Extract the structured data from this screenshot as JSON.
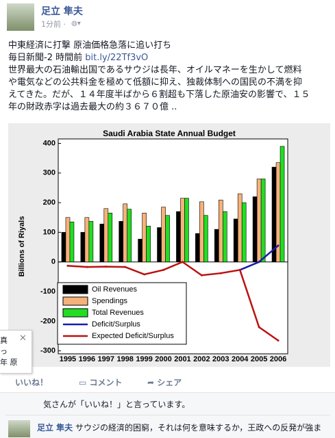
{
  "post": {
    "author": "足立 隼夫",
    "time": "1分前 ·",
    "headline": "中東経済に打撃 原油価格急落に追い打ち",
    "source": "毎日新聞-2 時間前",
    "link": "bit.ly/22Tf3vO",
    "body": [
      "世界最大の石油輸出国であるサウジは長年、オイルマネーを生かして燃料",
      "や電気などの公共料金を極めて低額に抑え、独裁体制への国民の不満を抑",
      "えてきた。だが、１４年度半ばから６割超も下落した原油安の影響で、１５",
      "年の財政赤字は過去最大の約３６７０億 .."
    ]
  },
  "popup": {
    "lines": [
      "真",
      "っ",
      "年 原"
    ]
  },
  "actions": {
    "like": "いいね！",
    "comment": "コメント",
    "share": "シェア"
  },
  "likes": "気さんが「いいね！」と言っています。",
  "comment": {
    "author": "足立 隼夫",
    "text": "サウジの経済的困窮，それは何を意味するか，王政への反発が強ま"
  },
  "chart_data": {
    "type": "bar",
    "title": "Saudi Arabia State Annual Budget",
    "y_label": "Billions of Riyals",
    "categories": [
      "1995",
      "1996",
      "1997",
      "1998",
      "1999",
      "2000",
      "2001",
      "2002",
      "2003",
      "2004",
      "2005",
      "2006"
    ],
    "ylim": [
      -310,
      415
    ],
    "yticks": [
      -300,
      -200,
      -100,
      0,
      100,
      200,
      300,
      400
    ],
    "series": [
      {
        "name": "Oil Revenues",
        "type": "bar",
        "color": "#000000",
        "values": [
          100,
          100,
          128,
          137,
          77,
          116,
          170,
          96,
          110,
          145,
          220,
          320
        ]
      },
      {
        "name": "Spendings",
        "type": "bar",
        "color": "#f5b27a",
        "values": [
          150,
          150,
          180,
          196,
          165,
          185,
          215,
          203,
          209,
          230,
          280,
          335
        ]
      },
      {
        "name": "Total Revenues",
        "type": "bar",
        "color": "#22dd22",
        "values": [
          135,
          137,
          165,
          178,
          121,
          157,
          215,
          157,
          170,
          200,
          280,
          390
        ]
      },
      {
        "name": "Deficit/Surplus",
        "type": "line",
        "color": "#1a1aaa",
        "values": [
          null,
          null,
          null,
          null,
          null,
          null,
          null,
          null,
          null,
          -27,
          0,
          55
        ]
      },
      {
        "name": "Expected Deficit/Surplus",
        "type": "line",
        "color": "#bb1111",
        "values": [
          -13,
          -17,
          -16,
          -17,
          -42,
          -27,
          0,
          -45,
          -38,
          -27,
          -220,
          -265
        ]
      }
    ]
  }
}
